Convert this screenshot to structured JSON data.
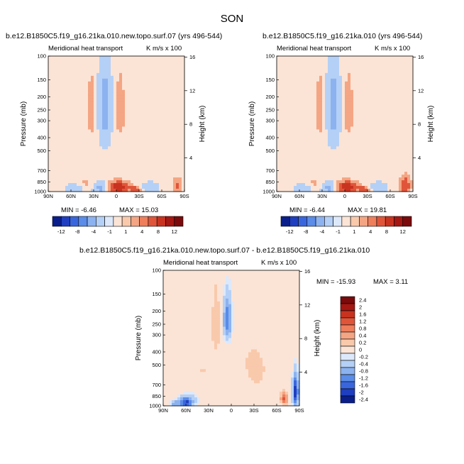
{
  "title": "SON",
  "chart_data": [
    {
      "type": "heatmap",
      "title": "b.e12.B1850C5.f19_g16.21ka.010.new.topo.surf.07 (yrs 496-544)",
      "subtitle_left": "Meridional heat transport",
      "subtitle_right": "K m/s x 100",
      "ylabel": "Pressure (mb)",
      "y2label": "Height (km)",
      "x_ticks": [
        "90N",
        "60N",
        "30N",
        "0",
        "30S",
        "60S",
        "90S"
      ],
      "y_ticks": [
        "100",
        "150",
        "200",
        "250",
        "300",
        "400",
        "500",
        "700",
        "850",
        "1000"
      ],
      "y2_ticks": [
        "16",
        "12",
        "8",
        "4"
      ],
      "min_label": "MIN = -6.46",
      "max_label": "MAX = 15.03",
      "min": -6.46,
      "max": 15.03,
      "colorbar": {
        "labels": [
          "-12",
          "-8",
          "-4",
          "-1",
          "1",
          "4",
          "8",
          "12"
        ],
        "colors": [
          "#0a1f8c",
          "#1f3fc0",
          "#3a66dd",
          "#5a8ce8",
          "#8cb2ef",
          "#b5d0f6",
          "#dde9fb",
          "#fbe4d6",
          "#f9c9ac",
          "#f4a583",
          "#ee7e5c",
          "#e0553a",
          "#c83320",
          "#a51712",
          "#7a0a0c"
        ]
      },
      "features": [
        {
          "lat": 15,
          "p": 250,
          "value": -6,
          "rx": 7,
          "rp": 150
        },
        {
          "lat": 33,
          "p": 250,
          "value": 3,
          "rx": 5,
          "rp": 130
        },
        {
          "lat": -5,
          "p": 250,
          "value": 3,
          "rx": 7,
          "rp": 150
        },
        {
          "lat": -2,
          "p": 930,
          "value": 12,
          "rx": 14,
          "rp": 90
        },
        {
          "lat": -25,
          "p": 960,
          "value": 6,
          "rx": 7,
          "rp": 50
        },
        {
          "lat": 20,
          "p": 930,
          "value": -6,
          "rx": 10,
          "rp": 80
        },
        {
          "lat": 55,
          "p": 950,
          "value": -4,
          "rx": 10,
          "rp": 70
        },
        {
          "lat": 40,
          "p": 880,
          "value": 2,
          "rx": 15,
          "rp": 100
        },
        {
          "lat": -45,
          "p": 930,
          "value": -3,
          "rx": 10,
          "rp": 80
        },
        {
          "lat": -80,
          "p": 900,
          "value": 5,
          "rx": 6,
          "rp": 120
        },
        {
          "lat": 60,
          "p": 400,
          "value": 1,
          "rx": 25,
          "rp": 350
        },
        {
          "lat": -50,
          "p": 600,
          "value": 1,
          "rx": 22,
          "rp": 300
        }
      ]
    },
    {
      "type": "heatmap",
      "title": "b.e12.B1850C5.f19_g16.21ka.010 (yrs 496-544)",
      "subtitle_left": "Meridional heat transport",
      "subtitle_right": "K m/s x 100",
      "ylabel": "Pressure (mb)",
      "y2label": "Height (km)",
      "x_ticks": [
        "90N",
        "60N",
        "30N",
        "0",
        "30S",
        "60S",
        "90S"
      ],
      "y_ticks": [
        "100",
        "150",
        "200",
        "250",
        "300",
        "400",
        "500",
        "700",
        "850",
        "1000"
      ],
      "y2_ticks": [
        "16",
        "12",
        "8",
        "4"
      ],
      "min_label": "MIN = -6.44",
      "max_label": "MAX = 19.81",
      "min": -6.44,
      "max": 19.81,
      "colorbar": {
        "labels": [
          "-12",
          "-8",
          "-4",
          "-1",
          "1",
          "4",
          "8",
          "12"
        ],
        "colors": [
          "#0a1f8c",
          "#1f3fc0",
          "#3a66dd",
          "#5a8ce8",
          "#8cb2ef",
          "#b5d0f6",
          "#dde9fb",
          "#fbe4d6",
          "#f9c9ac",
          "#f4a583",
          "#ee7e5c",
          "#e0553a",
          "#c83320",
          "#a51712",
          "#7a0a0c"
        ]
      },
      "features": [
        {
          "lat": 15,
          "p": 250,
          "value": -6,
          "rx": 7,
          "rp": 150
        },
        {
          "lat": 33,
          "p": 250,
          "value": 3,
          "rx": 5,
          "rp": 130
        },
        {
          "lat": -5,
          "p": 250,
          "value": 3,
          "rx": 7,
          "rp": 150
        },
        {
          "lat": -2,
          "p": 930,
          "value": 12,
          "rx": 14,
          "rp": 90
        },
        {
          "lat": -25,
          "p": 960,
          "value": 6,
          "rx": 7,
          "rp": 50
        },
        {
          "lat": 20,
          "p": 930,
          "value": -6,
          "rx": 10,
          "rp": 80
        },
        {
          "lat": 55,
          "p": 950,
          "value": -4,
          "rx": 10,
          "rp": 70
        },
        {
          "lat": 40,
          "p": 880,
          "value": 2,
          "rx": 15,
          "rp": 100
        },
        {
          "lat": -45,
          "p": 930,
          "value": -3,
          "rx": 10,
          "rp": 80
        },
        {
          "lat": -80,
          "p": 900,
          "value": 8,
          "rx": 7,
          "rp": 130
        },
        {
          "lat": 60,
          "p": 400,
          "value": 1,
          "rx": 25,
          "rp": 350
        },
        {
          "lat": -50,
          "p": 600,
          "value": 1,
          "rx": 22,
          "rp": 300
        }
      ]
    },
    {
      "type": "heatmap",
      "title": "b.e12.B1850C5.f19_g16.21ka.010.new.topo.surf.07 - b.e12.B1850C5.f19_g16.21ka.010",
      "subtitle_left": "Meridional heat transport",
      "subtitle_right": "K m/s x 100",
      "ylabel": "Pressure (mb)",
      "y2label": "Height (km)",
      "x_ticks": [
        "90N",
        "60N",
        "30N",
        "0",
        "30S",
        "60S",
        "90S"
      ],
      "y_ticks": [
        "100",
        "150",
        "200",
        "250",
        "300",
        "400",
        "500",
        "700",
        "850",
        "1000"
      ],
      "y2_ticks": [
        "16",
        "12",
        "8",
        "4"
      ],
      "min_label": "MIN = -15.93",
      "max_label": "MAX =   3.11",
      "min": -15.93,
      "max": 3.11,
      "colorbar": {
        "labels": [
          "2.4",
          "2",
          "1.6",
          "1.2",
          "0.8",
          "0.4",
          "0.2",
          "0",
          "-0.2",
          "-0.4",
          "-0.8",
          "-1.2",
          "-1.6",
          "-2",
          "-2.4"
        ],
        "colors": [
          "#7a0a0c",
          "#a51712",
          "#c83320",
          "#e0553a",
          "#ee7e5c",
          "#f4a583",
          "#f9c9ac",
          "#fbe4d6",
          "#dde9fb",
          "#b5d0f6",
          "#8cb2ef",
          "#5a8ce8",
          "#3a66dd",
          "#1f3fc0",
          "#0a1f8c"
        ]
      },
      "features": [
        {
          "lat": 5,
          "p": 230,
          "value": -1.6,
          "rx": 6,
          "rp": 90
        },
        {
          "lat": 60,
          "p": 940,
          "value": -2.0,
          "rx": 10,
          "rp": 80
        },
        {
          "lat": 75,
          "p": 960,
          "value": -1.0,
          "rx": 6,
          "rp": 50
        },
        {
          "lat": 50,
          "p": 820,
          "value": -0.3,
          "rx": 18,
          "rp": 200
        },
        {
          "lat": 20,
          "p": 250,
          "value": 0.3,
          "rx": 6,
          "rp": 150
        },
        {
          "lat": -70,
          "p": 880,
          "value": 1.2,
          "rx": 4,
          "rp": 80
        },
        {
          "lat": -85,
          "p": 780,
          "value": -2.4,
          "rx": 4,
          "rp": 220
        },
        {
          "lat": -30,
          "p": 550,
          "value": 0.2,
          "rx": 25,
          "rp": 300
        },
        {
          "lat": 0,
          "p": 700,
          "value": -0.2,
          "rx": 20,
          "rp": 150
        },
        {
          "lat": 40,
          "p": 600,
          "value": 0.2,
          "rx": 20,
          "rp": 200
        }
      ]
    }
  ]
}
